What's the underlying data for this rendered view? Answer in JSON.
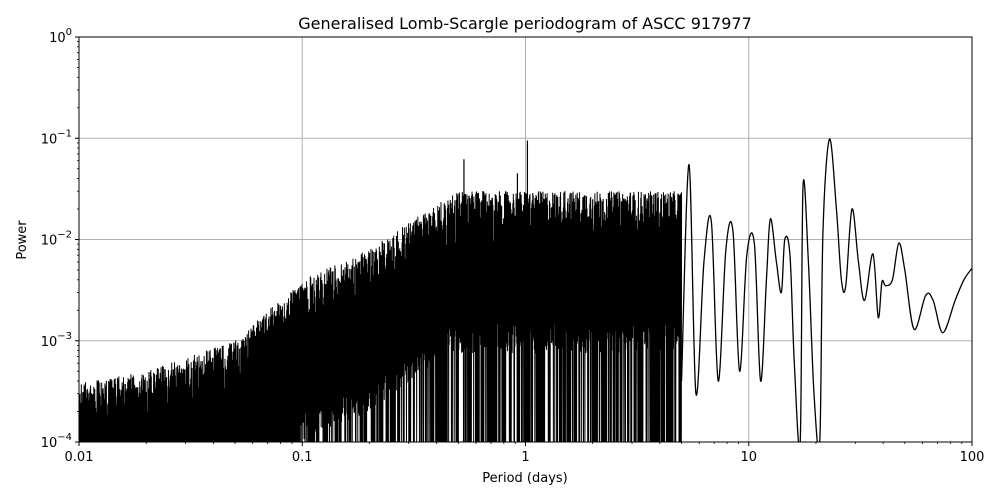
{
  "chart_data": {
    "type": "line",
    "title": "Generalised Lomb-Scargle periodogram of ASCC 917977",
    "xlabel": "Period (days)",
    "ylabel": "Power",
    "xscale": "log",
    "yscale": "log",
    "xlim": [
      0.01,
      100
    ],
    "ylim": [
      0.0001,
      1
    ],
    "grid": true,
    "line_color": "#000000",
    "grid_color": "#b0b0b0",
    "x_ticks": [
      {
        "value": 0.01,
        "label": "0.01"
      },
      {
        "value": 0.1,
        "label": "0.1"
      },
      {
        "value": 1,
        "label": "1"
      },
      {
        "value": 10,
        "label": "10"
      },
      {
        "value": 100,
        "label": "100"
      }
    ],
    "y_ticks": [
      {
        "value": 0.0001,
        "base": "10",
        "exp": "−4"
      },
      {
        "value": 0.001,
        "base": "10",
        "exp": "−3"
      },
      {
        "value": 0.01,
        "base": "10",
        "exp": "−2"
      },
      {
        "value": 0.1,
        "base": "10",
        "exp": "−1"
      },
      {
        "value": 1,
        "base": "10",
        "exp": "0"
      }
    ],
    "noise_envelope": {
      "description": "dense oscillation below ~1 day period",
      "points": [
        {
          "period": 0.01,
          "peak_power": 0.0004
        },
        {
          "period": 0.02,
          "peak_power": 0.0005
        },
        {
          "period": 0.05,
          "peak_power": 0.001
        },
        {
          "period": 0.1,
          "peak_power": 0.004
        },
        {
          "period": 0.2,
          "peak_power": 0.008
        },
        {
          "period": 0.3,
          "peak_power": 0.015
        },
        {
          "period": 0.5,
          "peak_power": 0.03
        },
        {
          "period": 1.0,
          "peak_power": 0.03
        }
      ]
    },
    "peaks": [
      {
        "period": 0.53,
        "power": 0.062
      },
      {
        "period": 0.92,
        "power": 0.045
      },
      {
        "period": 1.02,
        "power": 0.095
      },
      {
        "period": 1.5,
        "power": 0.03
      },
      {
        "period": 2.0,
        "power": 0.025
      },
      {
        "period": 2.8,
        "power": 0.02
      },
      {
        "period": 3.5,
        "power": 0.018
      },
      {
        "period": 4.3,
        "power": 0.015
      },
      {
        "period": 5.4,
        "power": 0.055
      },
      {
        "period": 6.8,
        "power": 0.015
      },
      {
        "period": 8.5,
        "power": 0.012
      },
      {
        "period": 10.6,
        "power": 0.009
      },
      {
        "period": 12.5,
        "power": 0.016
      },
      {
        "period": 14.5,
        "power": 0.01
      },
      {
        "period": 17.5,
        "power": 0.033
      },
      {
        "period": 23.0,
        "power": 0.098
      },
      {
        "period": 29.0,
        "power": 0.02
      },
      {
        "period": 36.0,
        "power": 0.0072
      },
      {
        "period": 39.5,
        "power": 0.0038
      },
      {
        "period": 47.0,
        "power": 0.0092
      },
      {
        "period": 62.0,
        "power": 0.0028
      },
      {
        "period": 100.0,
        "power": 0.0052
      }
    ],
    "smooth_curve": [
      [
        5.0,
        0.0004
      ],
      [
        5.4,
        0.055
      ],
      [
        5.8,
        0.0003
      ],
      [
        6.3,
        0.006
      ],
      [
        6.8,
        0.015
      ],
      [
        7.3,
        0.0004
      ],
      [
        7.9,
        0.008
      ],
      [
        8.5,
        0.012
      ],
      [
        9.1,
        0.0005
      ],
      [
        9.8,
        0.007
      ],
      [
        10.6,
        0.009
      ],
      [
        11.3,
        0.0004
      ],
      [
        12.0,
        0.004
      ],
      [
        12.5,
        0.016
      ],
      [
        13.3,
        0.006
      ],
      [
        14.0,
        0.003
      ],
      [
        14.5,
        0.01
      ],
      [
        15.3,
        0.007
      ],
      [
        16.0,
        0.0006
      ],
      [
        17.0,
        0.0001
      ],
      [
        17.5,
        0.033
      ],
      [
        18.5,
        0.006
      ],
      [
        19.6,
        0.0003
      ],
      [
        20.8,
        0.0001
      ],
      [
        21.5,
        0.012
      ],
      [
        23.0,
        0.098
      ],
      [
        24.7,
        0.02
      ],
      [
        26.0,
        0.004
      ],
      [
        27.2,
        0.0035
      ],
      [
        29.0,
        0.02
      ],
      [
        31.0,
        0.006
      ],
      [
        33.0,
        0.0025
      ],
      [
        36.0,
        0.0072
      ],
      [
        38.0,
        0.0017
      ],
      [
        39.5,
        0.0038
      ],
      [
        41.0,
        0.0035
      ],
      [
        44.0,
        0.004
      ],
      [
        47.0,
        0.0092
      ],
      [
        50.0,
        0.005
      ],
      [
        55.0,
        0.0013
      ],
      [
        62.0,
        0.0028
      ],
      [
        67.0,
        0.0025
      ],
      [
        74.0,
        0.0012
      ],
      [
        84.0,
        0.0025
      ],
      [
        92.0,
        0.004
      ],
      [
        100.0,
        0.0052
      ]
    ]
  }
}
